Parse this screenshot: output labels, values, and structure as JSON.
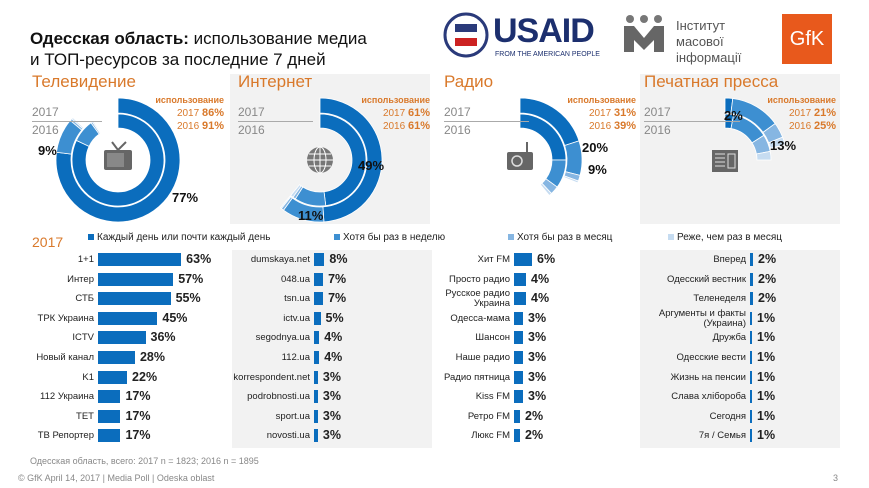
{
  "header": {
    "title_bold": "Одесская область:",
    "title_rest": " использование медиа",
    "title_line2": "и ТОП-ресурсов за последние 7 дней",
    "logos": {
      "usaid": "USAID",
      "usaid_sub": "FROM THE AMERICAN PEOPLE",
      "imi": "Інститут масової інформації",
      "gfk": "GfK"
    }
  },
  "colors": {
    "daily": "#0b6dbd",
    "weekly": "#3d8fd1",
    "monthly": "#86b6e2",
    "rarely": "#c6dcf1",
    "accent": "#d9792b"
  },
  "usage_label": "использование",
  "year_2017": "2017",
  "year_2016": "2016",
  "chart_data": [
    {
      "type": "donut",
      "title": "Телевидение",
      "icon": "tv-icon",
      "use_2017": "86%",
      "use_2016": "91%",
      "ring_2017": [
        77,
        9,
        0.6,
        0.4
      ],
      "ring_2016": [
        82,
        8,
        0.6,
        0.4
      ],
      "labels": [
        "77%",
        "9%"
      ]
    },
    {
      "type": "donut",
      "title": "Интернет",
      "icon": "globe-icon",
      "use_2017": "61%",
      "use_2016": "61%",
      "ring_2017": [
        49,
        11,
        0.7,
        0.3
      ],
      "ring_2016": [
        48,
        11,
        1,
        1
      ],
      "labels": [
        "49%",
        "11%"
      ]
    },
    {
      "type": "donut",
      "title": "Радио",
      "icon": "radio-icon",
      "use_2017": "31%",
      "use_2016": "39%",
      "ring_2017": [
        20,
        9,
        1.5,
        0.5
      ],
      "ring_2016": [
        25,
        10,
        3,
        1
      ],
      "labels": [
        "20%",
        "9%"
      ]
    },
    {
      "type": "donut",
      "title": "Печатная пресса",
      "icon": "newspaper-icon",
      "use_2017": "21%",
      "use_2016": "25%",
      "ring_2017": [
        2,
        13,
        4,
        2
      ],
      "ring_2016": [
        3,
        13,
        6,
        3
      ],
      "labels": [
        "2%",
        "13%"
      ]
    }
  ],
  "legend": {
    "year": "2017",
    "items": [
      "Каждый день или почти каждый день",
      "Хотя бы раз в неделю",
      "Хотя бы раз в месяц",
      "Реже, чем раз в месяц"
    ]
  },
  "lists": [
    {
      "items": [
        [
          "1+1",
          63
        ],
        [
          "Интер",
          57
        ],
        [
          "СТБ",
          55
        ],
        [
          "ТРК Украина",
          45
        ],
        [
          "ICTV",
          36
        ],
        [
          "Новый канал",
          28
        ],
        [
          "K1",
          22
        ],
        [
          "112 Украина",
          17
        ],
        [
          "ТЕТ",
          17
        ],
        [
          "ТВ Репортер",
          17
        ]
      ]
    },
    {
      "items": [
        [
          "dumskaya.net",
          8
        ],
        [
          "048.ua",
          7
        ],
        [
          "tsn.ua",
          7
        ],
        [
          "ictv.ua",
          5
        ],
        [
          "segodnya.ua",
          4
        ],
        [
          "112.ua",
          4
        ],
        [
          "korrespondent.net",
          3
        ],
        [
          "podrobnosti.ua",
          3
        ],
        [
          "sport.ua",
          3
        ],
        [
          "novosti.ua",
          3
        ]
      ]
    },
    {
      "items": [
        [
          "Хит FM",
          6
        ],
        [
          "Просто радио",
          4
        ],
        [
          "Русское радио Украина",
          4
        ],
        [
          "Одесса-мама",
          3
        ],
        [
          "Шансон",
          3
        ],
        [
          "Наше радио",
          3
        ],
        [
          "Радио пятница",
          3
        ],
        [
          "Kiss FM",
          3
        ],
        [
          "Ретро FM",
          2
        ],
        [
          "Люкс FM",
          2
        ]
      ]
    },
    {
      "items": [
        [
          "Вперед",
          2
        ],
        [
          "Одесский вестник",
          2
        ],
        [
          "Теленеделя",
          2
        ],
        [
          "Аргументы и факты (Украина)",
          1
        ],
        [
          "Дружба",
          1
        ],
        [
          "Одесские вести",
          1
        ],
        [
          "Жизнь на пенсии",
          1
        ],
        [
          "Слава хлібороба",
          1
        ],
        [
          "Сегодня",
          1
        ],
        [
          "7я / Семья",
          1
        ]
      ]
    }
  ],
  "footer": {
    "sample": "Одесская область, всего: 2017 n = 1823; 2016 n = 1895",
    "copyright": "© GfK April 14, 2017 | Media Poll | Odeska oblast",
    "page": "3"
  }
}
